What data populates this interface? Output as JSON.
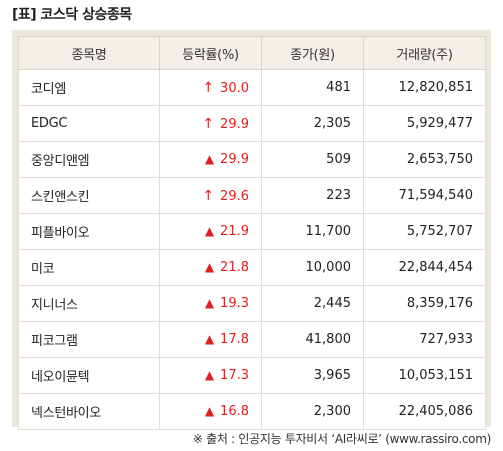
{
  "title": "[표] 코스닥 상승종목",
  "headers": [
    "종목명",
    "등락률(%)",
    "종가(원)",
    "거래량(주)"
  ],
  "accent_color": "#e0201f",
  "rows": [
    {
      "name": "코디엠",
      "mark": "↑",
      "mark_type": "upper-limit-arrow-icon",
      "rate": "30.0",
      "price": "481",
      "volume": "12,820,851"
    },
    {
      "name": "EDGC",
      "mark": "↑",
      "mark_type": "upper-limit-arrow-icon",
      "rate": "29.9",
      "price": "2,305",
      "volume": "5,929,477"
    },
    {
      "name": "중앙디앤엠",
      "mark": "▲",
      "mark_type": "up-triangle-icon",
      "rate": "29.9",
      "price": "509",
      "volume": "2,653,750"
    },
    {
      "name": "스킨앤스킨",
      "mark": "↑",
      "mark_type": "upper-limit-arrow-icon",
      "rate": "29.6",
      "price": "223",
      "volume": "71,594,540"
    },
    {
      "name": "피플바이오",
      "mark": "▲",
      "mark_type": "up-triangle-icon",
      "rate": "21.9",
      "price": "11,700",
      "volume": "5,752,707"
    },
    {
      "name": "미코",
      "mark": "▲",
      "mark_type": "up-triangle-icon",
      "rate": "21.8",
      "price": "10,000",
      "volume": "22,844,454"
    },
    {
      "name": "지니너스",
      "mark": "▲",
      "mark_type": "up-triangle-icon",
      "rate": "19.3",
      "price": "2,445",
      "volume": "8,359,176"
    },
    {
      "name": "피코그램",
      "mark": "▲",
      "mark_type": "up-triangle-icon",
      "rate": "17.8",
      "price": "41,800",
      "volume": "727,933"
    },
    {
      "name": "네오이뮨텍",
      "mark": "▲",
      "mark_type": "up-triangle-icon",
      "rate": "17.3",
      "price": "3,965",
      "volume": "10,053,151"
    },
    {
      "name": "넥스턴바이오",
      "mark": "▲",
      "mark_type": "up-triangle-icon",
      "rate": "16.8",
      "price": "2,300",
      "volume": "22,405,086"
    }
  ],
  "source": "※ 출처 : 인공지능 투자비서 ‘AI라씨로’ (www.rassiro.com)"
}
